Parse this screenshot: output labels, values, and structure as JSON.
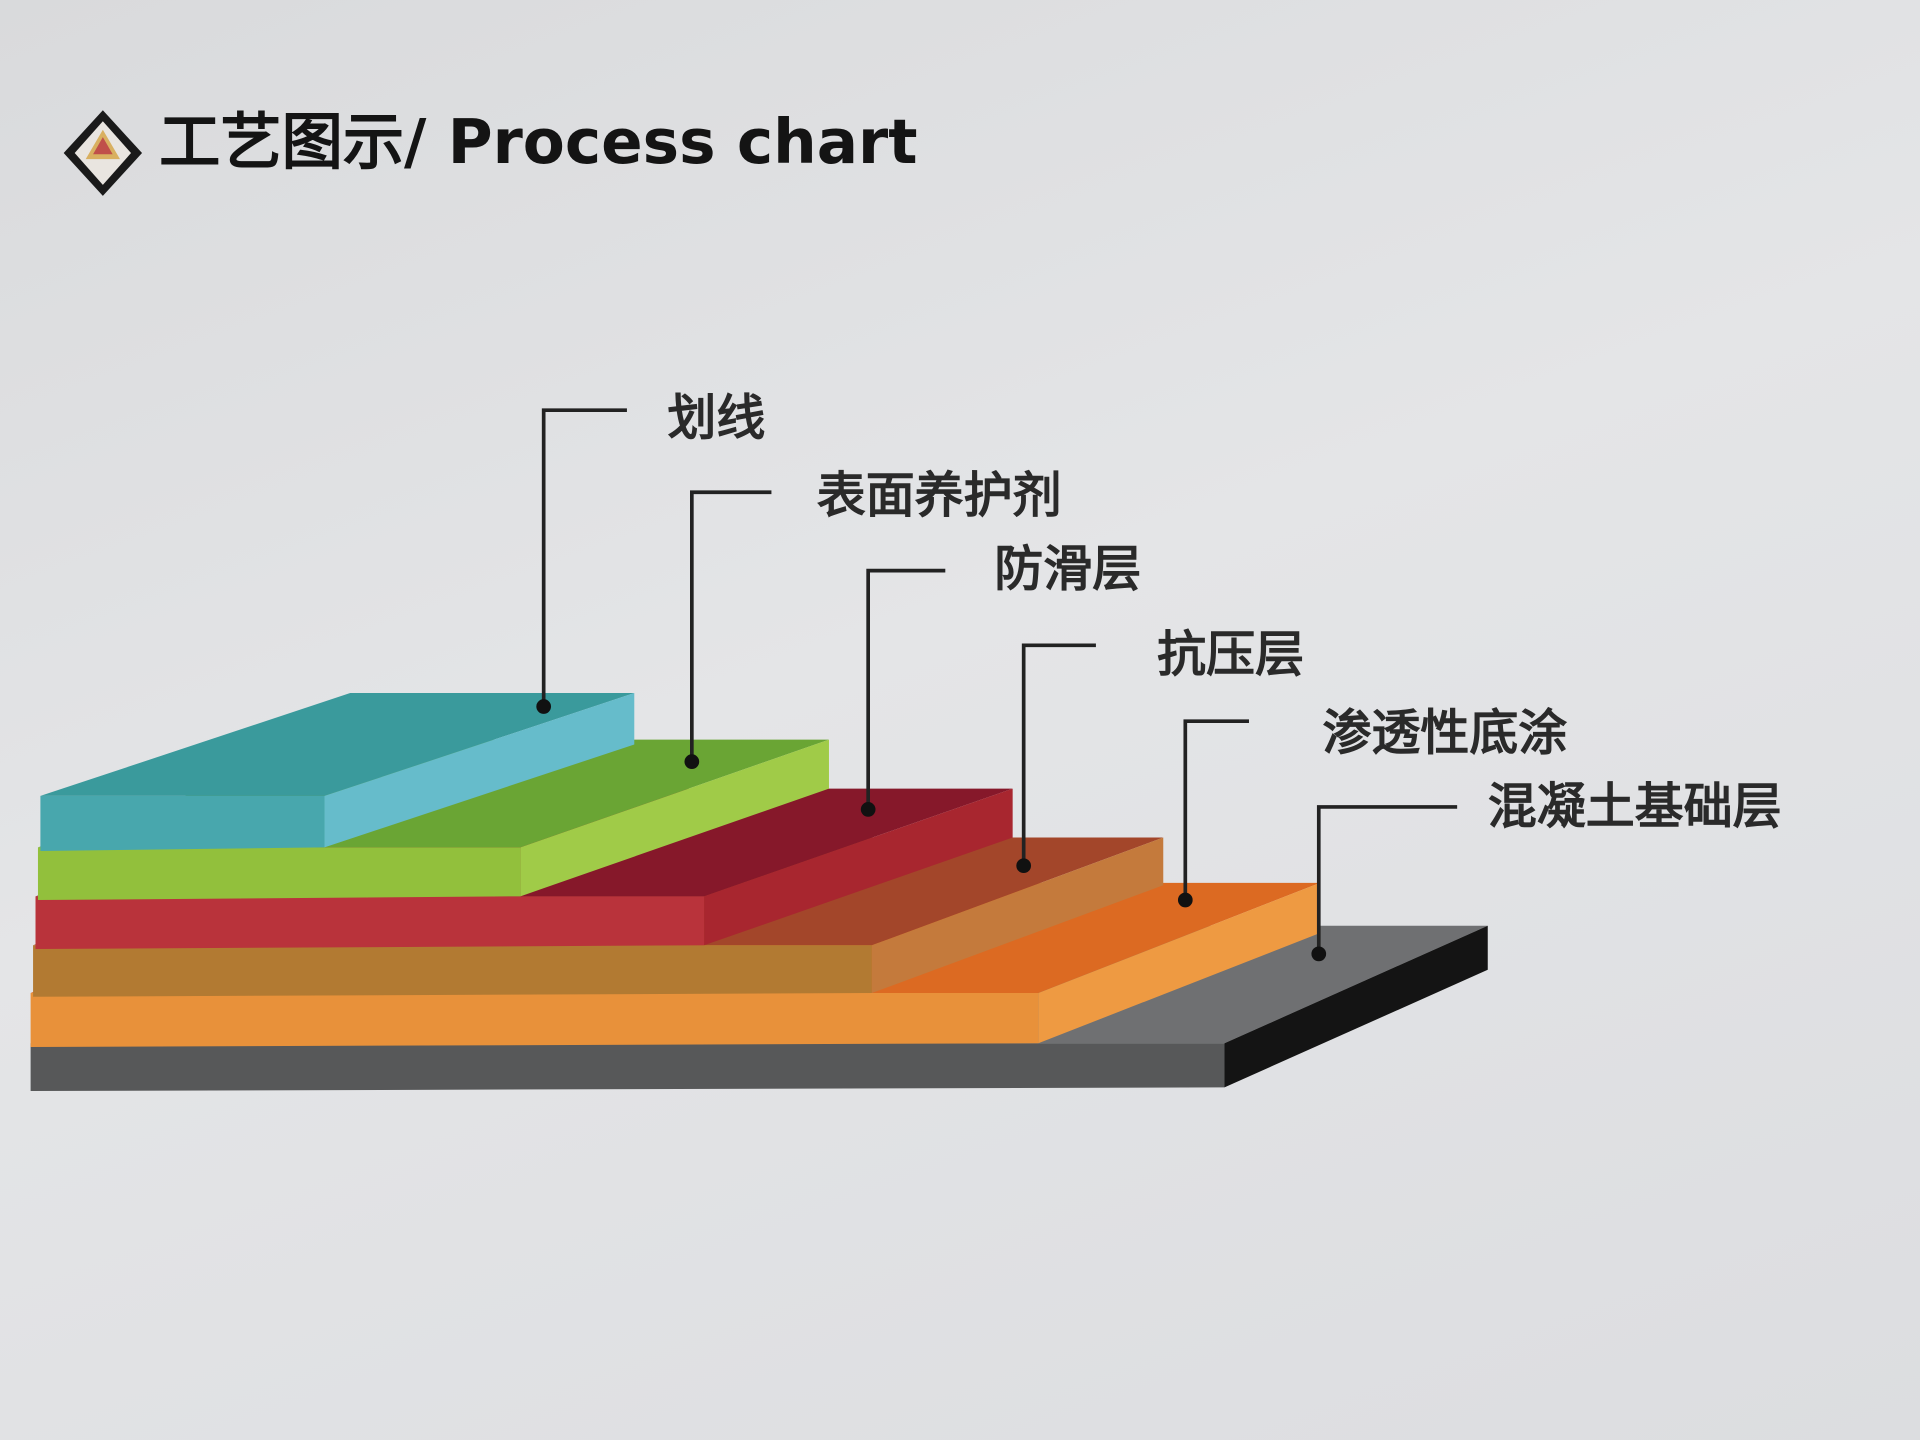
{
  "header": {
    "title": "工艺图示/ Process chart",
    "logo_icon": "diamond-logo-icon"
  },
  "layers": [
    {
      "label": "混凝土基础层",
      "colors": {
        "front": "#575859",
        "top": "#6f7072",
        "side": "#141414"
      }
    },
    {
      "label": "渗透性底涂",
      "colors": {
        "front": "#e8913a",
        "top": "#dc6a22",
        "side": "#ee9a42"
      }
    },
    {
      "label": "抗压层",
      "colors": {
        "front": "#b27a32",
        "top": "#a3462a",
        "side": "#c47a3c"
      }
    },
    {
      "label": "防滑层",
      "colors": {
        "front": "#b9333b",
        "top": "#86182a",
        "side": "#a8262f"
      }
    },
    {
      "label": "表面养护剂",
      "colors": {
        "front": "#92c03c",
        "top": "#6aa534",
        "side": "#a0cb48"
      }
    },
    {
      "label": "划线",
      "colors": {
        "front": "#48a7ad",
        "top": "#3a9a9c",
        "side": "#66bccb"
      }
    }
  ]
}
